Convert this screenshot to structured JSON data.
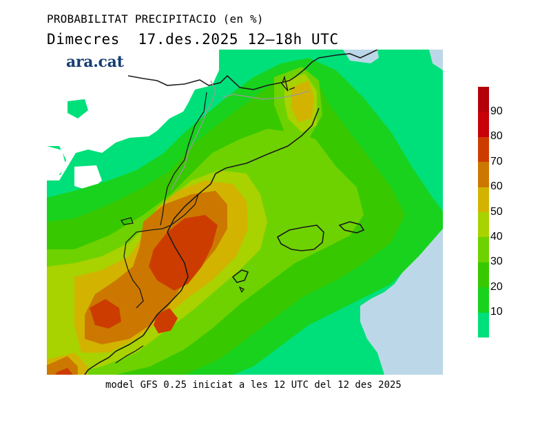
{
  "title_line1": "PROBABILITAT PRECIPITACIO (en %)",
  "title_line2": "Dimecres  17.des.2025 12–18h UTC",
  "logo": "ara.cat",
  "footer": "model GFS 0.25 iniciat a les 12 UTC del 12 des 2025",
  "legend": {
    "levels": [
      {
        "value": "90",
        "color": "#c8000a"
      },
      {
        "value": "80",
        "color": "#cc3c00"
      },
      {
        "value": "70",
        "color": "#cc7800"
      },
      {
        "value": "60",
        "color": "#d2b400"
      },
      {
        "value": "50",
        "color": "#a8d200"
      },
      {
        "value": "40",
        "color": "#6ed200"
      },
      {
        "value": "30",
        "color": "#37c800"
      },
      {
        "value": "20",
        "color": "#19d21e"
      },
      {
        "value": "10",
        "color": "#00e07a"
      }
    ],
    "top_color": "#b4000a"
  },
  "colors": {
    "sea": "#bcd8e8",
    "land_no_precip": "#ffffff",
    "coastline": "#1a1a1a",
    "border": "#9a9a9a"
  }
}
